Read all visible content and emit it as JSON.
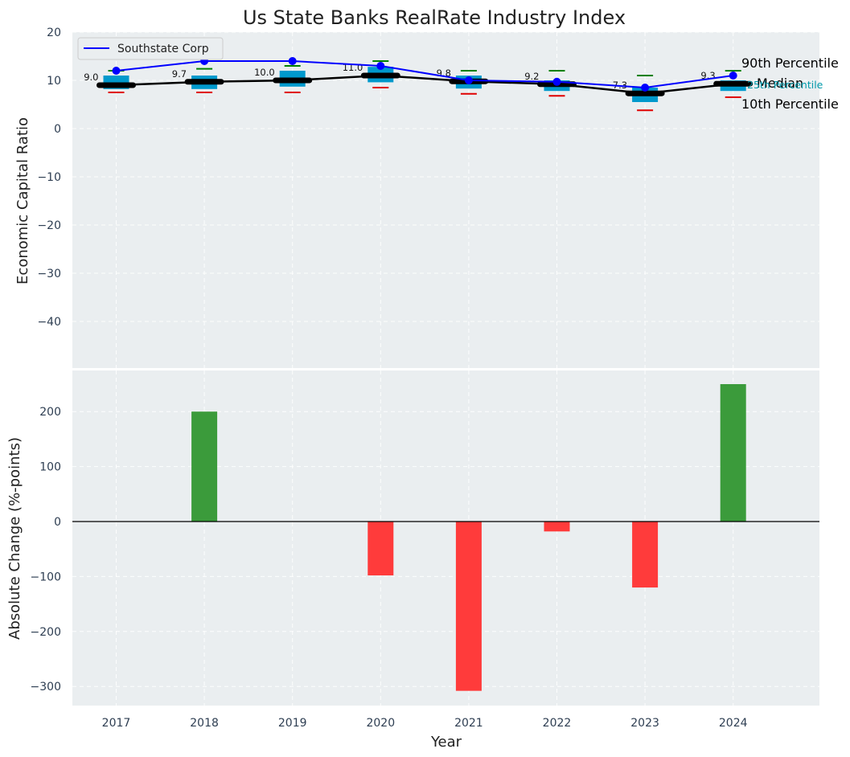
{
  "chart_data": {
    "type": "box+bar",
    "title": "Us State Banks RealRate Industry Index",
    "xlabel": "Year",
    "years": [
      "2017",
      "2018",
      "2019",
      "2020",
      "2021",
      "2022",
      "2023",
      "2024"
    ],
    "top": {
      "ylabel": "Economic Capital Ratio",
      "ylim": [
        -50,
        20
      ],
      "yticks": [
        "20",
        "10",
        "0",
        "−10",
        "−20",
        "−30",
        "−40"
      ],
      "ytick_values": [
        20,
        10,
        0,
        -10,
        -20,
        -30,
        -40
      ],
      "legend": "Southstate Corp",
      "legend_placement": "top-left",
      "southstate": [
        12.0,
        14.0,
        14.0,
        13.0,
        10.0,
        9.7,
        8.5,
        11.0
      ],
      "median": [
        9.0,
        9.7,
        10.0,
        11.0,
        9.8,
        9.2,
        7.3,
        9.3
      ],
      "median_labels": [
        "9.0",
        "9.7",
        "10.0",
        "11.0",
        "9.8",
        "9.2",
        "7.3",
        "9.3"
      ],
      "p10": [
        7.5,
        7.5,
        7.5,
        8.5,
        7.2,
        6.8,
        3.8,
        6.5
      ],
      "p25": [
        8.2,
        8.2,
        8.7,
        9.6,
        8.3,
        7.8,
        5.5,
        7.8
      ],
      "p75": [
        11.0,
        11.0,
        12.0,
        12.8,
        11.0,
        10.0,
        8.5,
        10.0
      ],
      "p90": [
        12.0,
        12.4,
        13.0,
        14.0,
        12.0,
        12.0,
        11.0,
        12.0
      ],
      "annotations": {
        "p90": "90th Percentile",
        "median": "Median",
        "p25": "25th Percentile",
        "p10": "10th Percentile"
      }
    },
    "bottom": {
      "ylabel": "Absolute Change (%-points)",
      "ylim": [
        -335,
        285
      ],
      "yticks": [
        "200",
        "100",
        "0",
        "−100",
        "−200",
        "−300"
      ],
      "ytick_values": [
        200,
        100,
        0,
        -100,
        -200,
        -300
      ],
      "values": [
        0,
        200,
        0,
        -98,
        -308,
        -18,
        -120,
        250
      ]
    },
    "colors": {
      "background": "#eaeef0",
      "line": "#0000ff",
      "median": "#000000",
      "box": "#0099cc",
      "p90_whisker": "#008000",
      "p10_whisker": "#e00000",
      "positive": "#3b9b3b",
      "negative": "#ff3b3b",
      "p25_label": "#0099aa"
    }
  }
}
